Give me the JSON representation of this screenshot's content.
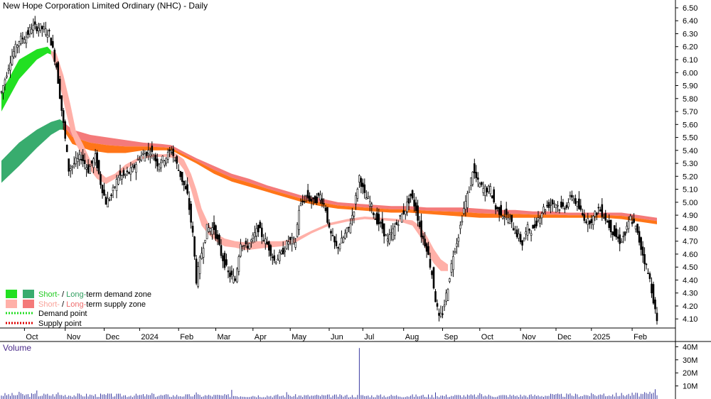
{
  "chart_data": {
    "type": "candlestick",
    "title": "New Hope Corporation Limited Ordinary (NHC) - Daily",
    "price_axis": {
      "ylim": [
        4.03,
        6.56
      ],
      "ticks": [
        "6.50",
        "6.40",
        "6.30",
        "6.20",
        "6.10",
        "6.00",
        "5.90",
        "5.80",
        "5.70",
        "5.60",
        "5.50",
        "5.40",
        "5.30",
        "5.20",
        "5.10",
        "5.00",
        "4.90",
        "4.80",
        "4.70",
        "4.60",
        "4.50",
        "4.40",
        "4.30",
        "4.20",
        "4.10"
      ]
    },
    "months": [
      {
        "label": "Oct",
        "t": 13
      },
      {
        "label": "Nov",
        "t": 36
      },
      {
        "label": "Dec",
        "t": 58
      },
      {
        "label": "2024",
        "t": 78
      },
      {
        "label": "Feb",
        "t": 100
      },
      {
        "label": "Mar",
        "t": 121
      },
      {
        "label": "Apr",
        "t": 142
      },
      {
        "label": "May",
        "t": 163
      },
      {
        "label": "Jun",
        "t": 185
      },
      {
        "label": "Jul",
        "t": 204
      },
      {
        "label": "Aug",
        "t": 227
      },
      {
        "label": "Sep",
        "t": 249
      },
      {
        "label": "Oct",
        "t": 270
      },
      {
        "label": "Nov",
        "t": 293
      },
      {
        "label": "Dec",
        "t": 313
      },
      {
        "label": "2025",
        "t": 333
      },
      {
        "label": "Feb",
        "t": 356
      }
    ],
    "close_path": [
      [
        0,
        5.85
      ],
      [
        5,
        6.1
      ],
      [
        10,
        6.25
      ],
      [
        14,
        6.28
      ],
      [
        17,
        6.35
      ],
      [
        22,
        6.35
      ],
      [
        27,
        6.3
      ],
      [
        31,
        6.05
      ],
      [
        35,
        5.6
      ],
      [
        38,
        5.25
      ],
      [
        41,
        5.3
      ],
      [
        45,
        5.35
      ],
      [
        49,
        5.25
      ],
      [
        53,
        5.35
      ],
      [
        56,
        5.15
      ],
      [
        59,
        5.0
      ],
      [
        62,
        5.05
      ],
      [
        66,
        5.2
      ],
      [
        69,
        5.2
      ],
      [
        74,
        5.25
      ],
      [
        78,
        5.35
      ],
      [
        84,
        5.4
      ],
      [
        88,
        5.3
      ],
      [
        93,
        5.35
      ],
      [
        96,
        5.4
      ],
      [
        100,
        5.25
      ],
      [
        105,
        5.05
      ],
      [
        108,
        4.75
      ],
      [
        110,
        4.4
      ],
      [
        112,
        4.55
      ],
      [
        116,
        4.8
      ],
      [
        120,
        4.8
      ],
      [
        124,
        4.6
      ],
      [
        128,
        4.45
      ],
      [
        132,
        4.4
      ],
      [
        135,
        4.7
      ],
      [
        138,
        4.65
      ],
      [
        141,
        4.7
      ],
      [
        145,
        4.8
      ],
      [
        148,
        4.72
      ],
      [
        151,
        4.65
      ],
      [
        154,
        4.55
      ],
      [
        158,
        4.6
      ],
      [
        162,
        4.7
      ],
      [
        166,
        4.7
      ],
      [
        168,
        4.95
      ],
      [
        172,
        5.05
      ],
      [
        176,
        5.0
      ],
      [
        180,
        5.05
      ],
      [
        183,
        4.95
      ],
      [
        185,
        4.78
      ],
      [
        189,
        4.65
      ],
      [
        192,
        4.7
      ],
      [
        196,
        4.8
      ],
      [
        199,
        4.95
      ],
      [
        202,
        5.2
      ],
      [
        205,
        5.05
      ],
      [
        208,
        5.0
      ],
      [
        211,
        4.88
      ],
      [
        215,
        4.8
      ],
      [
        218,
        4.7
      ],
      [
        221,
        4.78
      ],
      [
        225,
        4.88
      ],
      [
        228,
        4.95
      ],
      [
        231,
        5.05
      ],
      [
        234,
        4.95
      ],
      [
        237,
        4.75
      ],
      [
        240,
        4.65
      ],
      [
        243,
        4.45
      ],
      [
        245,
        4.25
      ],
      [
        247,
        4.1
      ],
      [
        249,
        4.15
      ],
      [
        252,
        4.35
      ],
      [
        255,
        4.6
      ],
      [
        258,
        4.75
      ],
      [
        261,
        4.95
      ],
      [
        264,
        5.1
      ],
      [
        266,
        5.25
      ],
      [
        269,
        5.15
      ],
      [
        272,
        5.1
      ],
      [
        276,
        5.1
      ],
      [
        279,
        4.95
      ],
      [
        282,
        4.92
      ],
      [
        286,
        4.88
      ],
      [
        290,
        4.78
      ],
      [
        294,
        4.68
      ],
      [
        297,
        4.8
      ],
      [
        300,
        4.78
      ],
      [
        303,
        4.88
      ],
      [
        306,
        4.95
      ],
      [
        309,
        4.98
      ],
      [
        312,
        5.0
      ],
      [
        316,
        4.95
      ],
      [
        319,
        4.98
      ],
      [
        322,
        5.05
      ],
      [
        325,
        4.98
      ],
      [
        328,
        4.9
      ],
      [
        331,
        4.85
      ],
      [
        334,
        4.88
      ],
      [
        337,
        4.95
      ],
      [
        340,
        4.9
      ],
      [
        343,
        4.82
      ],
      [
        346,
        4.75
      ],
      [
        349,
        4.7
      ],
      [
        352,
        4.75
      ],
      [
        355,
        4.88
      ],
      [
        358,
        4.8
      ],
      [
        361,
        4.65
      ],
      [
        363,
        4.55
      ],
      [
        366,
        4.4
      ],
      [
        368,
        4.25
      ],
      [
        370,
        4.07
      ]
    ],
    "volume_axis": {
      "ylim": [
        0,
        44
      ],
      "unit": "M",
      "ticks": [
        "40M",
        "30M",
        "20M",
        "10M"
      ]
    },
    "volume_base": [
      [
        0,
        3.2
      ],
      [
        100,
        2.6
      ],
      [
        200,
        2.4
      ],
      [
        300,
        2.6
      ],
      [
        370,
        3.6
      ]
    ],
    "volume_spikes": [
      [
        10,
        5.5
      ],
      [
        20,
        6.5
      ],
      [
        32,
        5.0
      ],
      [
        60,
        4.2
      ],
      [
        85,
        4.5
      ],
      [
        110,
        5.0
      ],
      [
        130,
        7.0
      ],
      [
        161,
        5.2
      ],
      [
        202,
        39.0
      ],
      [
        245,
        5.0
      ],
      [
        270,
        4.5
      ],
      [
        310,
        4.0
      ],
      [
        340,
        4.2
      ],
      [
        366,
        5.5
      ],
      [
        369,
        7.5
      ]
    ],
    "short_demand_zone": [
      [
        0,
        5.7,
        5.85
      ],
      [
        10,
        5.95,
        6.1
      ],
      [
        20,
        6.1,
        6.18
      ],
      [
        26,
        6.15,
        6.2
      ],
      [
        28,
        6.14,
        6.17
      ]
    ],
    "short_supply_zone": [
      [
        28,
        6.14,
        6.17
      ],
      [
        31,
        6.03,
        6.15
      ],
      [
        35,
        5.78,
        5.98
      ],
      [
        39,
        5.55,
        5.75
      ],
      [
        42,
        5.45,
        5.55
      ],
      [
        46,
        5.35,
        5.45
      ],
      [
        50,
        5.25,
        5.33
      ],
      [
        54,
        5.18,
        5.25
      ],
      [
        59,
        5.14,
        5.19
      ],
      [
        64,
        5.18,
        5.22
      ],
      [
        70,
        5.25,
        5.29
      ],
      [
        78,
        5.33,
        5.35
      ],
      [
        86,
        5.35,
        5.37
      ],
      [
        92,
        5.35,
        5.37
      ],
      [
        98,
        5.34,
        5.38
      ],
      [
        103,
        5.25,
        5.33
      ],
      [
        107,
        5.1,
        5.22
      ],
      [
        110,
        4.95,
        5.1
      ],
      [
        113,
        4.82,
        4.95
      ],
      [
        117,
        4.75,
        4.83
      ],
      [
        121,
        4.7,
        4.76
      ],
      [
        126,
        4.66,
        4.72
      ],
      [
        132,
        4.65,
        4.7
      ],
      [
        138,
        4.63,
        4.69
      ],
      [
        144,
        4.64,
        4.7
      ],
      [
        150,
        4.65,
        4.7
      ],
      [
        158,
        4.66,
        4.7
      ],
      [
        166,
        4.69,
        4.72
      ],
      [
        175,
        4.76,
        4.78
      ],
      [
        185,
        4.82,
        4.84
      ],
      [
        195,
        4.85,
        4.87
      ],
      [
        205,
        4.87,
        4.89
      ],
      [
        215,
        4.86,
        4.88
      ],
      [
        225,
        4.85,
        4.87
      ],
      [
        232,
        4.82,
        4.86
      ],
      [
        236,
        4.74,
        4.82
      ],
      [
        240,
        4.62,
        4.74
      ],
      [
        244,
        4.53,
        4.64
      ],
      [
        248,
        4.47,
        4.56
      ],
      [
        252,
        4.47,
        4.52
      ]
    ],
    "long_demand_zone": [
      [
        0,
        5.15,
        5.32
      ],
      [
        10,
        5.28,
        5.46
      ],
      [
        20,
        5.42,
        5.56
      ],
      [
        28,
        5.52,
        5.62
      ],
      [
        33,
        5.56,
        5.64
      ],
      [
        35,
        5.56,
        5.62
      ]
    ],
    "long_supply_zone": [
      [
        35,
        5.56,
        5.62
      ],
      [
        40,
        5.45,
        5.56
      ],
      [
        50,
        5.4,
        5.52
      ],
      [
        60,
        5.38,
        5.5
      ],
      [
        70,
        5.38,
        5.48
      ],
      [
        80,
        5.4,
        5.46
      ],
      [
        90,
        5.4,
        5.45
      ],
      [
        96,
        5.4,
        5.44
      ],
      [
        100,
        5.37,
        5.41
      ],
      [
        110,
        5.3,
        5.34
      ],
      [
        120,
        5.22,
        5.28
      ],
      [
        130,
        5.16,
        5.22
      ],
      [
        140,
        5.12,
        5.18
      ],
      [
        150,
        5.08,
        5.13
      ],
      [
        160,
        5.04,
        5.09
      ],
      [
        170,
        5.0,
        5.05
      ],
      [
        180,
        4.97,
        5.03
      ],
      [
        190,
        4.95,
        5.0
      ],
      [
        200,
        4.94,
        4.99
      ],
      [
        210,
        4.93,
        4.98
      ],
      [
        220,
        4.92,
        4.97
      ],
      [
        230,
        4.92,
        4.97
      ],
      [
        240,
        4.91,
        4.96
      ],
      [
        250,
        4.9,
        4.96
      ],
      [
        260,
        4.89,
        4.96
      ],
      [
        270,
        4.88,
        4.95
      ],
      [
        280,
        4.88,
        4.94
      ],
      [
        290,
        4.88,
        4.94
      ],
      [
        300,
        4.88,
        4.93
      ],
      [
        310,
        4.88,
        4.93
      ],
      [
        320,
        4.88,
        4.92
      ],
      [
        330,
        4.88,
        4.92
      ],
      [
        340,
        4.88,
        4.92
      ],
      [
        350,
        4.87,
        4.92
      ],
      [
        360,
        4.85,
        4.9
      ],
      [
        370,
        4.83,
        4.88
      ]
    ],
    "legend": {
      "row1": [
        "Short-",
        " / ",
        "Long-",
        "term demand zone"
      ],
      "row2": [
        "Short-",
        " / ",
        "Long-",
        "term supply zone"
      ],
      "row3": "Demand point",
      "row4": "Supply point"
    },
    "volume_title": "Volume",
    "colors": {
      "short_demand": "#22e022",
      "long_demand": "#38ac6e",
      "short_supply": "#ffb0a8",
      "long_supply_upper": "#f47a7a",
      "long_supply_lower": "#ff7518",
      "demand_point": "#22dd22",
      "supply_point": "#dd0000",
      "volume_bar": "#3a3aa0",
      "volume_title": "#4a2a8a"
    }
  }
}
